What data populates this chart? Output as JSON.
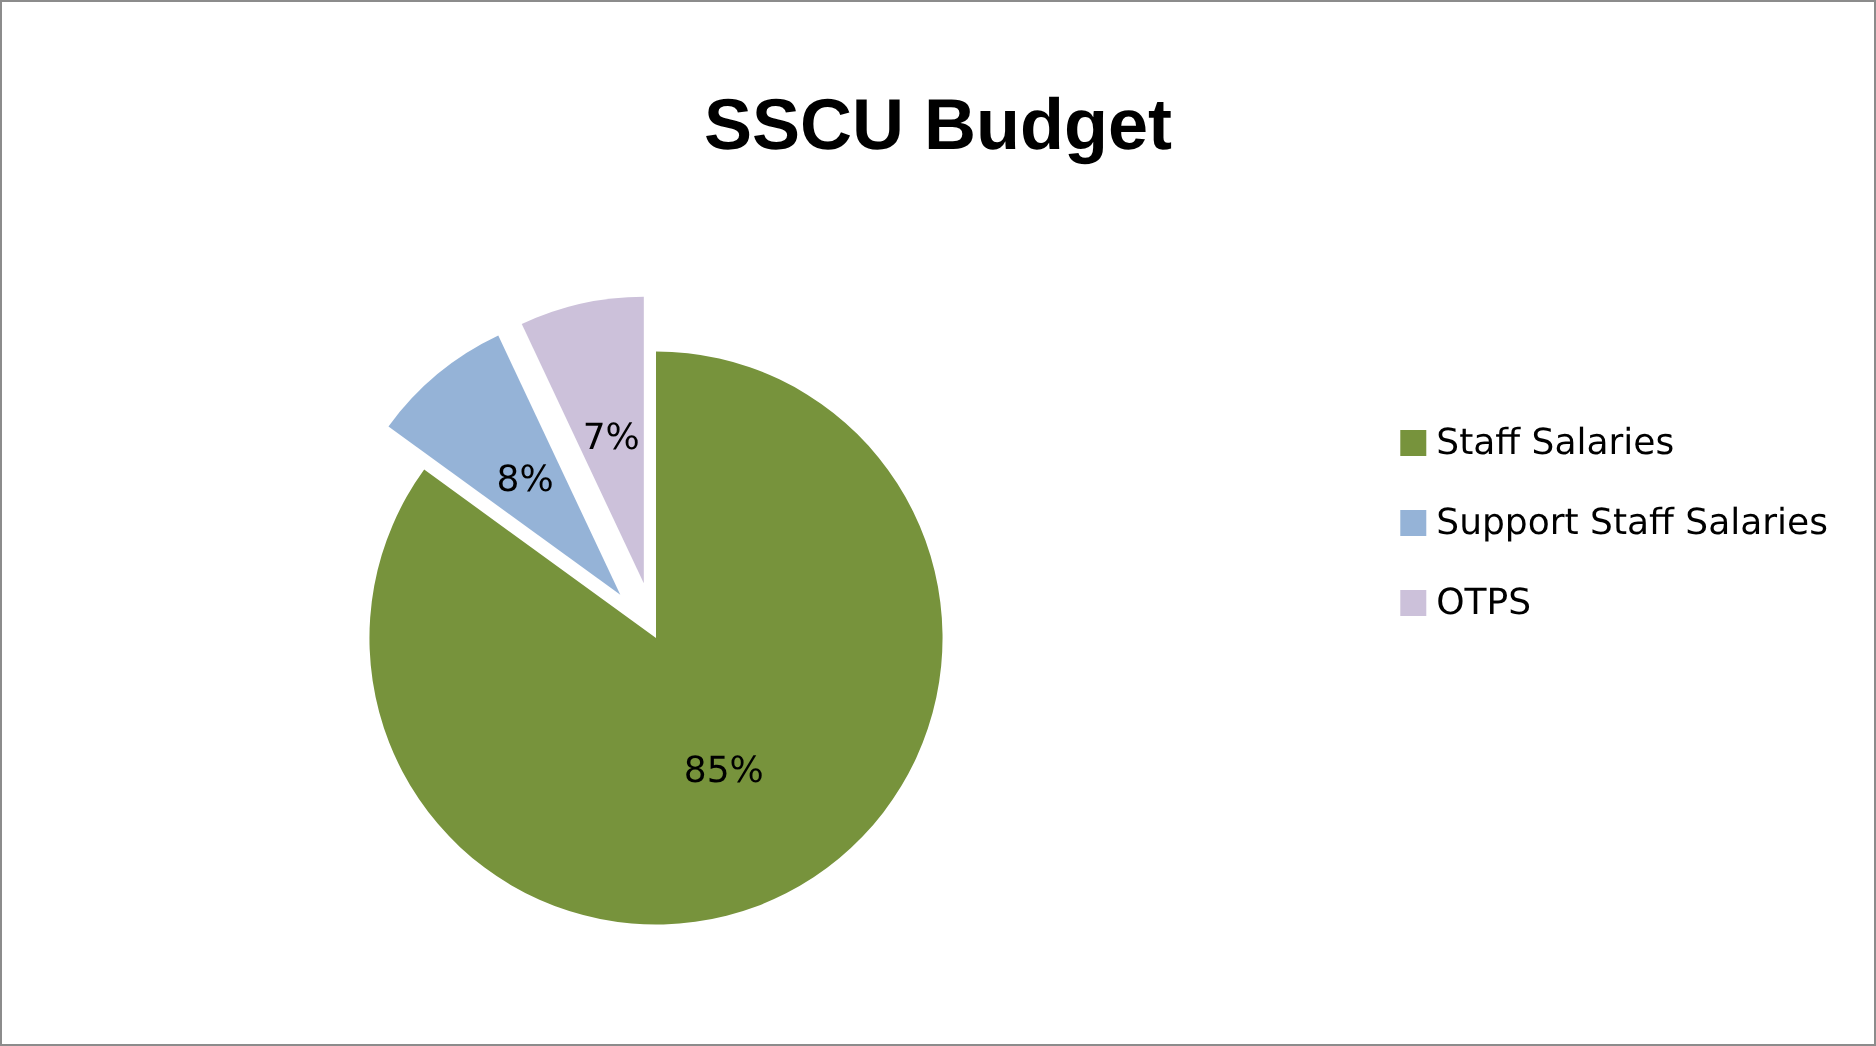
{
  "chart_data": {
    "type": "pie",
    "title": "SSCU Budget",
    "categories": [
      "Staff Salaries",
      "Support Staff Salaries",
      "OTPS"
    ],
    "values": [
      85,
      8,
      7
    ],
    "value_labels": [
      "85%",
      "8%",
      "7%"
    ],
    "colors": [
      "#77933c",
      "#95b3d7",
      "#ccc1da"
    ],
    "legend": "right"
  }
}
